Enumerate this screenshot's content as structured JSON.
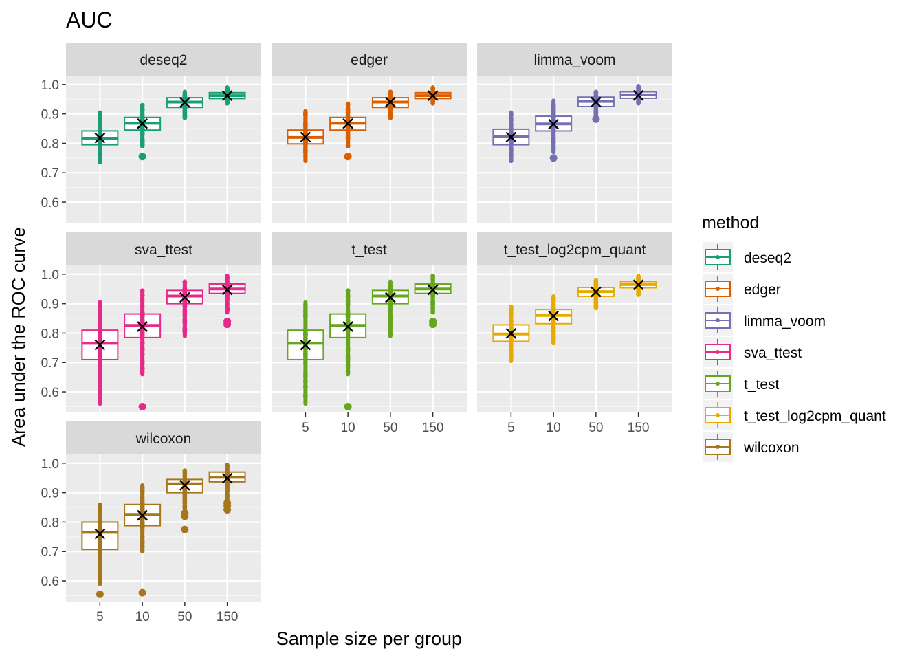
{
  "chart_data": {
    "type": "boxplot",
    "title": "AUC",
    "xlabel": "Sample size per group",
    "ylabel": "Area under the ROC curve",
    "categories": [
      "5",
      "10",
      "50",
      "150"
    ],
    "y_ticks": [
      0.6,
      0.7,
      0.8,
      0.9,
      1.0
    ],
    "y_tick_labels": [
      "0.6",
      "0.7",
      "0.8",
      "0.9",
      "1.0"
    ],
    "ylim": [
      0.53,
      1.03
    ],
    "facet_layout": {
      "rows": 3,
      "cols": 3
    },
    "legend": {
      "title": "method",
      "position": "right"
    },
    "marker": "x = mean",
    "panels": [
      {
        "method": "deseq2",
        "color": "#1B9E77",
        "boxes": [
          {
            "category": "5",
            "q1": 0.795,
            "median": 0.815,
            "q3": 0.842,
            "wlo": 0.735,
            "whi": 0.905,
            "mean": 0.818,
            "outliers_low": [],
            "outliers_high": []
          },
          {
            "category": "10",
            "q1": 0.845,
            "median": 0.868,
            "q3": 0.888,
            "wlo": 0.79,
            "whi": 0.93,
            "mean": 0.867,
            "outliers_low": [
              0.755
            ],
            "outliers_high": []
          },
          {
            "category": "50",
            "q1": 0.922,
            "median": 0.94,
            "q3": 0.955,
            "wlo": 0.885,
            "whi": 0.975,
            "mean": 0.939,
            "outliers_low": [],
            "outliers_high": []
          },
          {
            "category": "150",
            "q1": 0.952,
            "median": 0.962,
            "q3": 0.972,
            "wlo": 0.935,
            "whi": 0.99,
            "mean": 0.962,
            "outliers_low": [],
            "outliers_high": []
          }
        ]
      },
      {
        "method": "edger",
        "color": "#D95F02",
        "boxes": [
          {
            "category": "5",
            "q1": 0.798,
            "median": 0.82,
            "q3": 0.845,
            "wlo": 0.74,
            "whi": 0.91,
            "mean": 0.821,
            "outliers_low": [],
            "outliers_high": []
          },
          {
            "category": "10",
            "q1": 0.845,
            "median": 0.868,
            "q3": 0.888,
            "wlo": 0.79,
            "whi": 0.935,
            "mean": 0.867,
            "outliers_low": [
              0.755
            ],
            "outliers_high": []
          },
          {
            "category": "50",
            "q1": 0.922,
            "median": 0.94,
            "q3": 0.955,
            "wlo": 0.885,
            "whi": 0.975,
            "mean": 0.94,
            "outliers_low": [],
            "outliers_high": []
          },
          {
            "category": "150",
            "q1": 0.952,
            "median": 0.962,
            "q3": 0.972,
            "wlo": 0.935,
            "whi": 0.99,
            "mean": 0.962,
            "outliers_low": [],
            "outliers_high": []
          }
        ]
      },
      {
        "method": "limma_voom",
        "color": "#7570B3",
        "boxes": [
          {
            "category": "5",
            "q1": 0.795,
            "median": 0.822,
            "q3": 0.848,
            "wlo": 0.74,
            "whi": 0.905,
            "mean": 0.821,
            "outliers_low": [],
            "outliers_high": []
          },
          {
            "category": "10",
            "q1": 0.842,
            "median": 0.866,
            "q3": 0.892,
            "wlo": 0.77,
            "whi": 0.945,
            "mean": 0.865,
            "outliers_low": [
              0.75
            ],
            "outliers_high": []
          },
          {
            "category": "50",
            "q1": 0.925,
            "median": 0.942,
            "q3": 0.957,
            "wlo": 0.89,
            "whi": 0.975,
            "mean": 0.94,
            "outliers_low": [
              0.882
            ],
            "outliers_high": []
          },
          {
            "category": "150",
            "q1": 0.953,
            "median": 0.965,
            "q3": 0.975,
            "wlo": 0.935,
            "whi": 0.995,
            "mean": 0.963,
            "outliers_low": [],
            "outliers_high": []
          }
        ]
      },
      {
        "method": "sva_ttest",
        "color": "#E7298A",
        "boxes": [
          {
            "category": "5",
            "q1": 0.71,
            "median": 0.765,
            "q3": 0.81,
            "wlo": 0.56,
            "whi": 0.905,
            "mean": 0.76,
            "outliers_low": [],
            "outliers_high": []
          },
          {
            "category": "10",
            "q1": 0.785,
            "median": 0.826,
            "q3": 0.865,
            "wlo": 0.66,
            "whi": 0.945,
            "mean": 0.822,
            "outliers_low": [
              0.55
            ],
            "outliers_high": []
          },
          {
            "category": "50",
            "q1": 0.9,
            "median": 0.926,
            "q3": 0.945,
            "wlo": 0.79,
            "whi": 0.975,
            "mean": 0.921,
            "outliers_low": [],
            "outliers_high": []
          },
          {
            "category": "150",
            "q1": 0.935,
            "median": 0.95,
            "q3": 0.967,
            "wlo": 0.87,
            "whi": 0.995,
            "mean": 0.947,
            "outliers_low": [
              0.84,
              0.83
            ],
            "outliers_high": []
          }
        ]
      },
      {
        "method": "t_test",
        "color": "#66A61E",
        "boxes": [
          {
            "category": "5",
            "q1": 0.71,
            "median": 0.765,
            "q3": 0.81,
            "wlo": 0.56,
            "whi": 0.905,
            "mean": 0.76,
            "outliers_low": [],
            "outliers_high": []
          },
          {
            "category": "10",
            "q1": 0.785,
            "median": 0.826,
            "q3": 0.865,
            "wlo": 0.66,
            "whi": 0.945,
            "mean": 0.822,
            "outliers_low": [
              0.55
            ],
            "outliers_high": []
          },
          {
            "category": "50",
            "q1": 0.9,
            "median": 0.926,
            "q3": 0.945,
            "wlo": 0.79,
            "whi": 0.975,
            "mean": 0.921,
            "outliers_low": [],
            "outliers_high": []
          },
          {
            "category": "150",
            "q1": 0.935,
            "median": 0.95,
            "q3": 0.967,
            "wlo": 0.87,
            "whi": 0.995,
            "mean": 0.947,
            "outliers_low": [
              0.84,
              0.83
            ],
            "outliers_high": []
          }
        ]
      },
      {
        "method": "t_test_log2cpm_quant",
        "color": "#E6AB02",
        "boxes": [
          {
            "category": "5",
            "q1": 0.772,
            "median": 0.797,
            "q3": 0.828,
            "wlo": 0.705,
            "whi": 0.89,
            "mean": 0.799,
            "outliers_low": [],
            "outliers_high": []
          },
          {
            "category": "10",
            "q1": 0.832,
            "median": 0.86,
            "q3": 0.88,
            "wlo": 0.765,
            "whi": 0.925,
            "mean": 0.858,
            "outliers_low": [],
            "outliers_high": []
          },
          {
            "category": "50",
            "q1": 0.925,
            "median": 0.941,
            "q3": 0.955,
            "wlo": 0.885,
            "whi": 0.98,
            "mean": 0.94,
            "outliers_low": [],
            "outliers_high": []
          },
          {
            "category": "150",
            "q1": 0.954,
            "median": 0.965,
            "q3": 0.975,
            "wlo": 0.93,
            "whi": 0.995,
            "mean": 0.964,
            "outliers_low": [],
            "outliers_high": []
          }
        ]
      },
      {
        "method": "wilcoxon",
        "color": "#A6761D",
        "boxes": [
          {
            "category": "5",
            "q1": 0.707,
            "median": 0.765,
            "q3": 0.8,
            "wlo": 0.59,
            "whi": 0.86,
            "mean": 0.76,
            "outliers_low": [
              0.555
            ],
            "outliers_high": []
          },
          {
            "category": "10",
            "q1": 0.788,
            "median": 0.826,
            "q3": 0.86,
            "wlo": 0.7,
            "whi": 0.925,
            "mean": 0.823,
            "outliers_low": [
              0.56
            ],
            "outliers_high": []
          },
          {
            "category": "50",
            "q1": 0.9,
            "median": 0.93,
            "q3": 0.945,
            "wlo": 0.84,
            "whi": 0.975,
            "mean": 0.925,
            "outliers_low": [
              0.83,
              0.82,
              0.775
            ],
            "outliers_high": []
          },
          {
            "category": "150",
            "q1": 0.937,
            "median": 0.952,
            "q3": 0.97,
            "wlo": 0.875,
            "whi": 0.995,
            "mean": 0.949,
            "outliers_low": [
              0.865,
              0.855,
              0.842
            ],
            "outliers_high": []
          }
        ]
      }
    ]
  }
}
